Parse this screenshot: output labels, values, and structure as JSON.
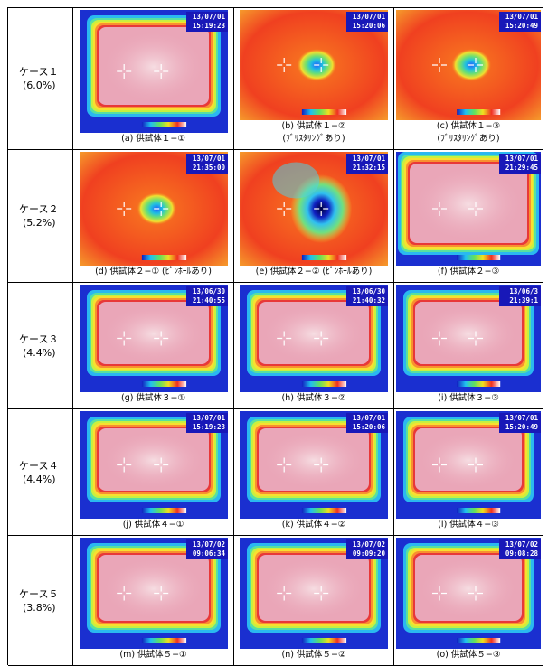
{
  "cases": [
    {
      "label": "ケース１",
      "ratio": "(6.0%)",
      "images": [
        {
          "date": "13/07/01",
          "time": "15:19:23",
          "caption": "(a) 供試体１−①"
        },
        {
          "date": "13/07/01",
          "time": "15:20:06",
          "caption": "(b) 供試体１−②",
          "note": "(ﾌﾞﾘｽﾀﾘﾝｸﾞあり)"
        },
        {
          "date": "13/07/01",
          "time": "15:20:49",
          "caption": "(c) 供試体１−③",
          "note": "(ﾌﾞﾘｽﾀﾘﾝｸﾞあり)"
        }
      ]
    },
    {
      "label": "ケース２",
      "ratio": "(5.2%)",
      "images": [
        {
          "date": "13/07/01",
          "time": "21:35:00",
          "caption": "(d) 供試体２−① (ﾋﾟﾝﾎｰﾙあり)"
        },
        {
          "date": "13/07/01",
          "time": "21:32:15",
          "caption": "(e) 供試体２−② (ﾋﾟﾝﾎｰﾙあり)"
        },
        {
          "date": "13/07/01",
          "time": "21:29:45",
          "caption": "(f) 供試体２−③"
        }
      ]
    },
    {
      "label": "ケース３",
      "ratio": "(4.4%)",
      "images": [
        {
          "date": "13/06/30",
          "time": "21:40:55",
          "caption": "(g) 供試体３−①"
        },
        {
          "date": "13/06/30",
          "time": "21:40:32",
          "caption": "(h) 供試体３−②"
        },
        {
          "date": "13/06/3",
          "time": "21:39:1",
          "caption": "(i) 供試体３−③"
        }
      ]
    },
    {
      "label": "ケース４",
      "ratio": "(4.4%)",
      "images": [
        {
          "date": "13/07/01",
          "time": "15:19:23",
          "caption": "(j) 供試体４−①"
        },
        {
          "date": "13/07/01",
          "time": "15:20:06",
          "caption": "(k) 供試体４−②"
        },
        {
          "date": "13/07/01",
          "time": "15:20:49",
          "caption": "(l) 供試体４−③"
        }
      ]
    },
    {
      "label": "ケース５",
      "ratio": "(3.8%)",
      "images": [
        {
          "date": "13/07/02",
          "time": "09:06:34",
          "caption": "(m) 供試体５−①"
        },
        {
          "date": "13/07/02",
          "time": "09:09:20",
          "caption": "(n) 供試体５−②"
        },
        {
          "date": "13/07/02",
          "time": "09:08:28",
          "caption": "(o) 供試体５−③"
        }
      ]
    }
  ]
}
